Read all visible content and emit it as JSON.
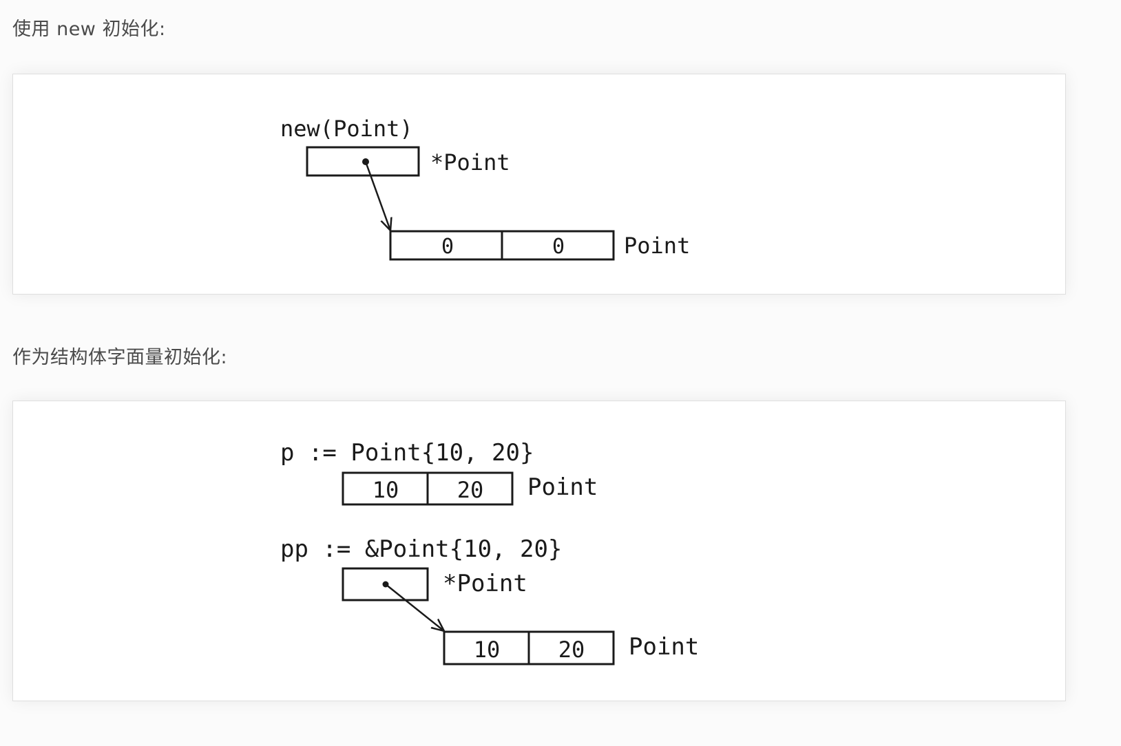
{
  "captions": {
    "new_init": "使用 new 初始化:",
    "literal_init": "作为结构体字面量初始化:"
  },
  "diagram1": {
    "expr": "new(Point)",
    "ptr_type": "*Point",
    "cell_a": "0",
    "cell_b": "0",
    "struct_type": "Point"
  },
  "diagram2": {
    "expr_value": "p := Point{10, 20}",
    "value_cell_a": "10",
    "value_cell_b": "20",
    "value_type": "Point",
    "expr_ptr": "pp := &Point{10, 20}",
    "ptr_type": "*Point",
    "ptr_cell_a": "10",
    "ptr_cell_b": "20",
    "ptr_struct_type": "Point"
  }
}
